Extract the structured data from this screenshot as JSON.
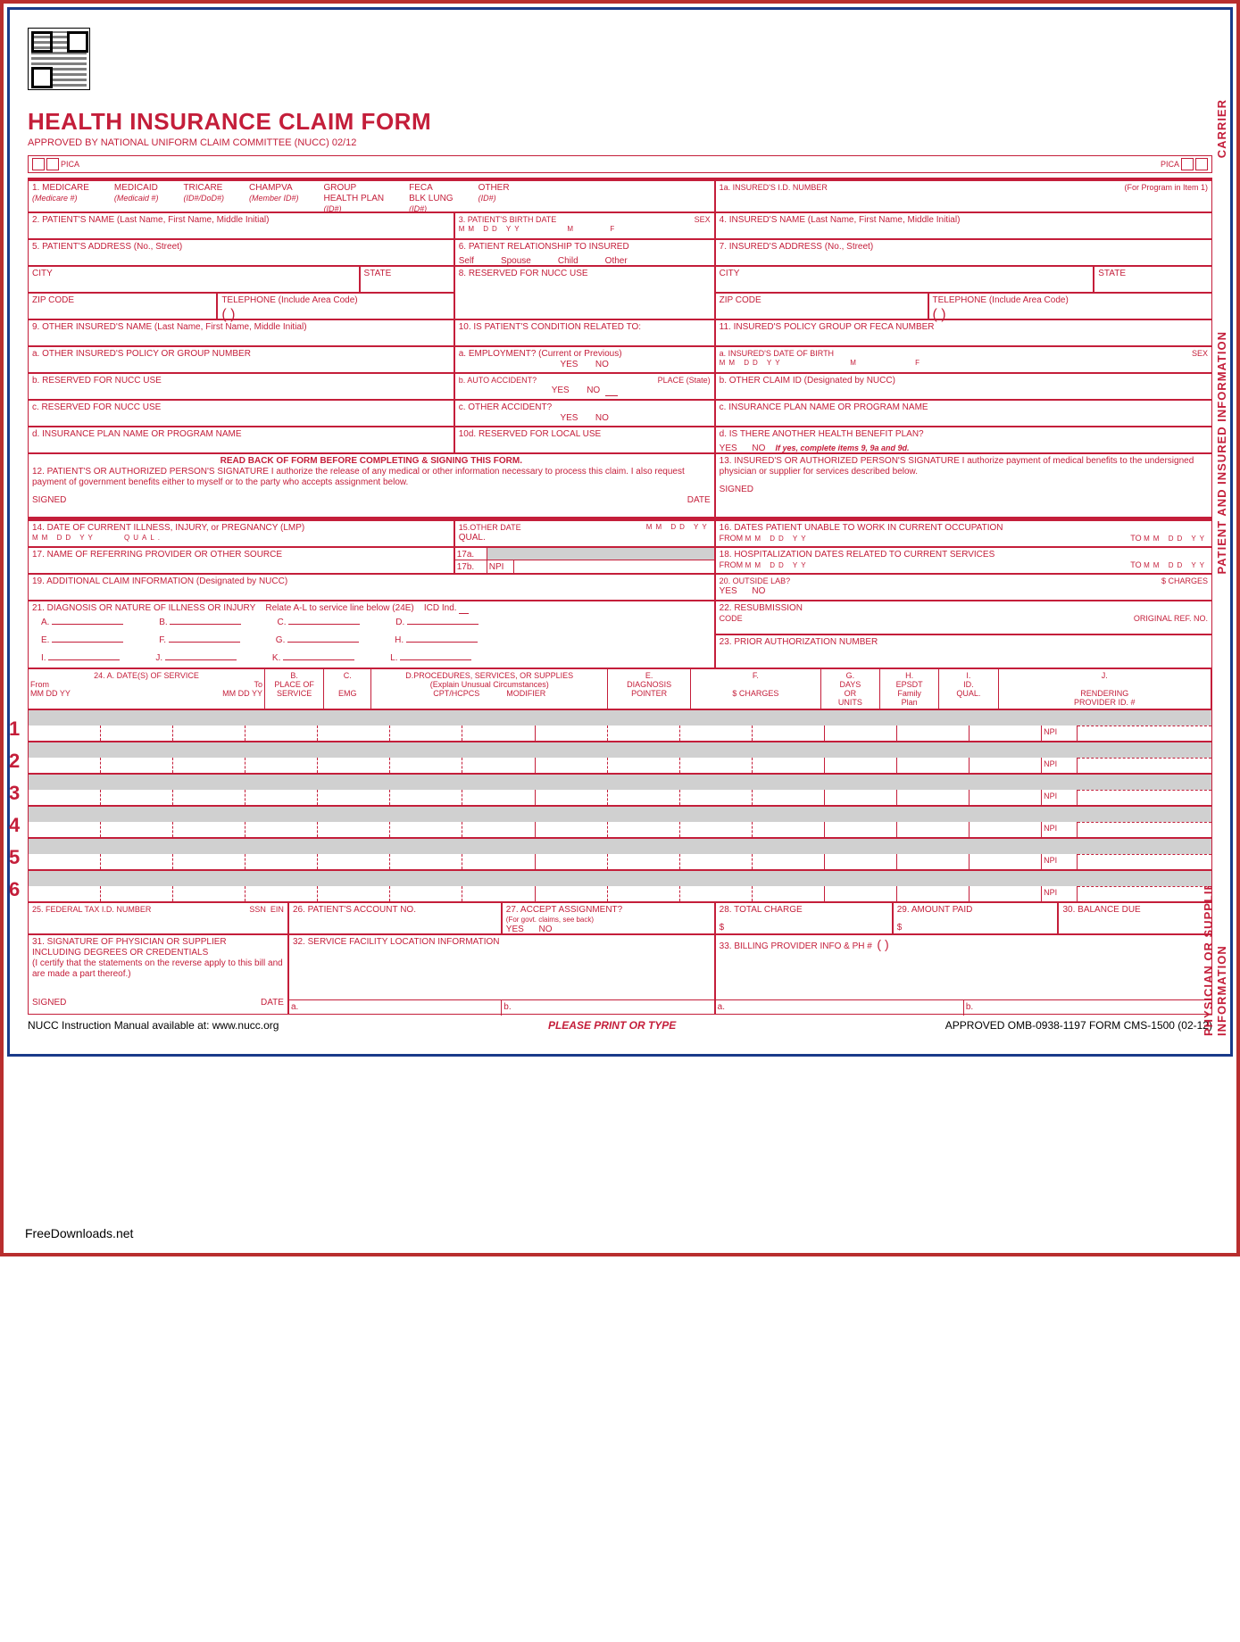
{
  "title": "HEALTH INSURANCE CLAIM FORM",
  "subtitle": "APPROVED BY NATIONAL UNIFORM CLAIM COMMITTEE (NUCC) 02/12",
  "pica": "PICA",
  "vertLabels": {
    "carrier": "CARRIER",
    "patient": "PATIENT AND INSURED INFORMATION",
    "physician": "PHYSICIAN OR SUPPLIER INFORMATION"
  },
  "box1": {
    "medicare": "MEDICARE",
    "medicareSub": "(Medicare #)",
    "medicaid": "MEDICAID",
    "medicaidSub": "(Medicaid #)",
    "tricare": "TRICARE",
    "tricareSub": "(ID#/DoD#)",
    "champva": "CHAMPVA",
    "champvaSub": "(Member ID#)",
    "group": "GROUP\nHEALTH PLAN",
    "groupSub": "(ID#)",
    "feca": "FECA\nBLK LUNG",
    "fecaSub": "(ID#)",
    "other": "OTHER",
    "otherSub": "(ID#)"
  },
  "box1a": {
    "label": "1a. INSURED'S I.D. NUMBER",
    "sub": "(For Program in Item 1)"
  },
  "box2": "2. PATIENT'S NAME (Last Name, First Name, Middle Initial)",
  "box3": {
    "label": "3. PATIENT'S BIRTH DATE",
    "sex": "SEX",
    "mm": "MM",
    "dd": "DD",
    "yy": "YY",
    "m": "M",
    "f": "F"
  },
  "box4": "4. INSURED'S NAME (Last Name, First Name, Middle Initial)",
  "box5": "5. PATIENT'S ADDRESS (No., Street)",
  "box6": {
    "label": "6. PATIENT RELATIONSHIP TO INSURED",
    "self": "Self",
    "spouse": "Spouse",
    "child": "Child",
    "other": "Other"
  },
  "box7": "7. INSURED'S ADDRESS (No., Street)",
  "city": "CITY",
  "state": "STATE",
  "zip": "ZIP CODE",
  "phone": "TELEPHONE (Include Area Code)",
  "parens": "(          )",
  "box8": "8. RESERVED FOR NUCC USE",
  "box9": "9. OTHER INSURED'S NAME (Last Name, First Name, Middle Initial)",
  "box9a": "a. OTHER INSURED'S POLICY OR GROUP NUMBER",
  "box9b": "b. RESERVED FOR NUCC USE",
  "box9c": "c. RESERVED FOR NUCC USE",
  "box9d": "d. INSURANCE PLAN NAME OR PROGRAM NAME",
  "box10": {
    "label": "10. IS PATIENT'S CONDITION RELATED TO:",
    "a": "a. EMPLOYMENT? (Current or Previous)",
    "b": "b. AUTO ACCIDENT?",
    "place": "PLACE (State)",
    "c": "c. OTHER ACCIDENT?",
    "yes": "YES",
    "no": "NO"
  },
  "box10d": "10d. RESERVED FOR LOCAL USE",
  "box11": "11. INSURED'S POLICY GROUP OR FECA NUMBER",
  "box11a": {
    "label": "a. INSURED'S DATE OF BIRTH",
    "sex": "SEX"
  },
  "box11b": "b. OTHER CLAIM ID (Designated by NUCC)",
  "box11c": "c. INSURANCE PLAN NAME OR PROGRAM NAME",
  "box11d": {
    "label": "d. IS THERE ANOTHER HEALTH BENEFIT PLAN?",
    "yes": "YES",
    "no": "NO",
    "note": "If yes, complete items 9, 9a and 9d."
  },
  "box12": {
    "header": "READ BACK OF FORM BEFORE COMPLETING & SIGNING THIS FORM.",
    "label": "12. PATIENT'S OR AUTHORIZED PERSON'S SIGNATURE",
    "text": "I authorize the release of any medical or other information necessary to process this claim. I also request payment of government benefits either to myself or to the party who accepts assignment below.",
    "signed": "SIGNED",
    "date": "DATE"
  },
  "box13": {
    "label": "13. INSURED'S OR AUTHORIZED PERSON'S SIGNATURE",
    "text": "I authorize payment of medical benefits to the undersigned physician or supplier for services described below.",
    "signed": "SIGNED"
  },
  "box14": {
    "label": "14. DATE OF CURRENT ILLNESS, INJURY, or PREGNANCY (LMP)",
    "qual": "QUAL."
  },
  "box15": {
    "label": "15.OTHER DATE",
    "qual": "QUAL."
  },
  "box16": {
    "label": "16. DATES PATIENT UNABLE TO WORK IN CURRENT OCCUPATION",
    "from": "FROM",
    "to": "TO"
  },
  "box17": {
    "label": "17. NAME OF REFERRING PROVIDER OR OTHER SOURCE",
    "a": "17a.",
    "b": "17b.",
    "npi": "NPI"
  },
  "box18": {
    "label": "18. HOSPITALIZATION DATES RELATED TO CURRENT SERVICES",
    "from": "FROM",
    "to": "TO"
  },
  "box19": "19. ADDITIONAL CLAIM INFORMATION (Designated by NUCC)",
  "box20": {
    "label": "20. OUTSIDE LAB?",
    "charges": "$ CHARGES",
    "yes": "YES",
    "no": "NO"
  },
  "box21": {
    "label": "21. DIAGNOSIS OR NATURE OF ILLNESS OR INJURY",
    "sub": "Relate A-L to service line below (24E)",
    "icd": "ICD Ind."
  },
  "diagLabels": [
    "A.",
    "B.",
    "C.",
    "D.",
    "E.",
    "F.",
    "G.",
    "H.",
    "I.",
    "J.",
    "K.",
    "L."
  ],
  "box22": {
    "label": "22. RESUBMISSION",
    "code": "CODE",
    "orig": "ORIGINAL REF. NO."
  },
  "box23": "23. PRIOR AUTHORIZATION NUMBER",
  "box24": {
    "a": "24. A.       DATE(S) OF SERVICE",
    "from": "From",
    "to": "To",
    "mm": "MM",
    "dd": "DD",
    "yy": "YY",
    "b": "B.\nPLACE OF\nSERVICE",
    "c": "C.\n\nEMG",
    "d": "D.PROCEDURES, SERVICES, OR SUPPLIES\n(Explain Unusual Circumstances)\nCPT/HCPCS            MODIFIER",
    "e": "E.\nDIAGNOSIS\nPOINTER",
    "f": "F.\n\n$ CHARGES",
    "g": "G.\nDAYS\nOR\nUNITS",
    "h": "H.\nEPSDT\nFamily\nPlan",
    "i": "I.\nID.\nQUAL.",
    "j": "J.\n\nRENDERING\nPROVIDER ID. #"
  },
  "npi": "NPI",
  "rowNums": [
    "1",
    "2",
    "3",
    "4",
    "5",
    "6"
  ],
  "box25": {
    "label": "25. FEDERAL TAX I.D. NUMBER",
    "ssn": "SSN",
    "ein": "EIN"
  },
  "box26": "26. PATIENT'S ACCOUNT NO.",
  "box27": {
    "label": "27. ACCEPT ASSIGNMENT?",
    "sub": "(For govt. claims, see back)",
    "yes": "YES",
    "no": "NO"
  },
  "box28": {
    "label": "28. TOTAL CHARGE",
    "dollar": "$"
  },
  "box29": {
    "label": "29. AMOUNT PAID",
    "dollar": "$"
  },
  "box30": "30. BALANCE DUE",
  "box31": {
    "label": "31. SIGNATURE OF PHYSICIAN OR SUPPLIER",
    "sub": "INCLUDING DEGREES OR CREDENTIALS",
    "text": "(I certify that the statements on the reverse apply to this bill and are made a part thereof.)",
    "signed": "SIGNED",
    "date": "DATE"
  },
  "box32": {
    "label": "32. SERVICE FACILITY LOCATION INFORMATION",
    "a": "a.",
    "b": "b."
  },
  "box33": {
    "label": "33. BILLING PROVIDER INFO & PH #",
    "parens": "(          )",
    "a": "a.",
    "b": "b."
  },
  "footer": {
    "left": "NUCC Instruction Manual available at: www.nucc.org",
    "center": "PLEASE PRINT OR TYPE",
    "right": "APPROVED OMB-0938-1197 FORM CMS-1500 (02-12)"
  },
  "credit": "FreeDownloads.net",
  "colors": {
    "formRed": "#c41e3a",
    "borderRed": "#b82e2e",
    "borderBlue": "#1a3a8a",
    "gray": "#d0d0d0",
    "black": "#000000",
    "white": "#ffffff"
  }
}
